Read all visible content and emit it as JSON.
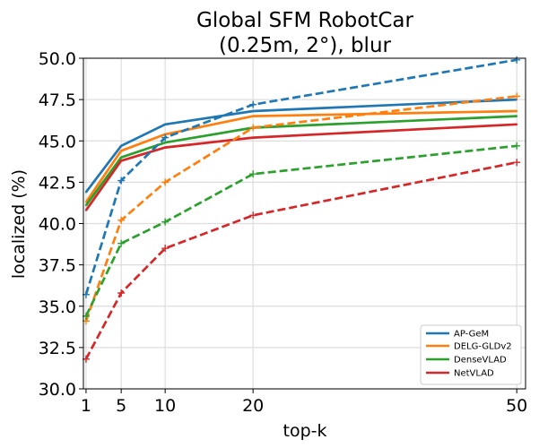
{
  "chart_data": {
    "type": "line",
    "title_lines": [
      "Global SFM RobotCar",
      "(0.25m, 2°), blur"
    ],
    "xlabel": "top-k",
    "ylabel": "localized (%)",
    "x": [
      1,
      5,
      10,
      20,
      50
    ],
    "xlim": [
      0.7,
      51.0
    ],
    "ylim": [
      30.0,
      50.0
    ],
    "xticks": [
      1,
      5,
      10,
      20,
      50
    ],
    "yticks": [
      30.0,
      32.5,
      35.0,
      37.5,
      40.0,
      42.5,
      45.0,
      47.5,
      50.0
    ],
    "ytick_labels": [
      "30.0",
      "32.5",
      "35.0",
      "37.5",
      "40.0",
      "42.5",
      "45.0",
      "47.5",
      "50.0"
    ],
    "grid": true,
    "legend_position": "lower right",
    "legend": [
      {
        "name": "AP-GeM",
        "color": "#1f77b4"
      },
      {
        "name": "DELG-GLDv2",
        "color": "#ff7f0e"
      },
      {
        "name": "DenseVLAD",
        "color": "#2ca02c"
      },
      {
        "name": "NetVLAD",
        "color": "#d62728"
      }
    ],
    "series": [
      {
        "method": "AP-GeM",
        "style": "solid",
        "color": "#1f77b4",
        "values": [
          41.9,
          44.7,
          46.0,
          46.8,
          47.5
        ]
      },
      {
        "method": "DELG-GLDv2",
        "style": "solid",
        "color": "#ff7f0e",
        "values": [
          41.3,
          44.4,
          45.4,
          46.5,
          46.8
        ]
      },
      {
        "method": "DenseVLAD",
        "style": "solid",
        "color": "#2ca02c",
        "values": [
          41.1,
          44.0,
          44.9,
          45.8,
          46.5
        ]
      },
      {
        "method": "NetVLAD",
        "style": "solid",
        "color": "#d62728",
        "values": [
          40.8,
          43.8,
          44.6,
          45.2,
          46.0
        ]
      },
      {
        "method": "AP-GeM",
        "style": "dashed",
        "marker": "plus",
        "color": "#1f77b4",
        "values": [
          35.7,
          42.6,
          45.2,
          47.2,
          49.9
        ]
      },
      {
        "method": "DELG-GLDv2",
        "style": "dashed",
        "marker": "plus",
        "color": "#ff7f0e",
        "values": [
          34.1,
          40.2,
          42.5,
          45.8,
          47.7
        ]
      },
      {
        "method": "DenseVLAD",
        "style": "dashed",
        "marker": "plus",
        "color": "#2ca02c",
        "values": [
          34.4,
          38.8,
          40.1,
          43.0,
          44.7
        ]
      },
      {
        "method": "NetVLAD",
        "style": "dashed",
        "marker": "plus",
        "color": "#d62728",
        "values": [
          31.8,
          35.8,
          38.5,
          40.5,
          43.7
        ]
      }
    ]
  }
}
